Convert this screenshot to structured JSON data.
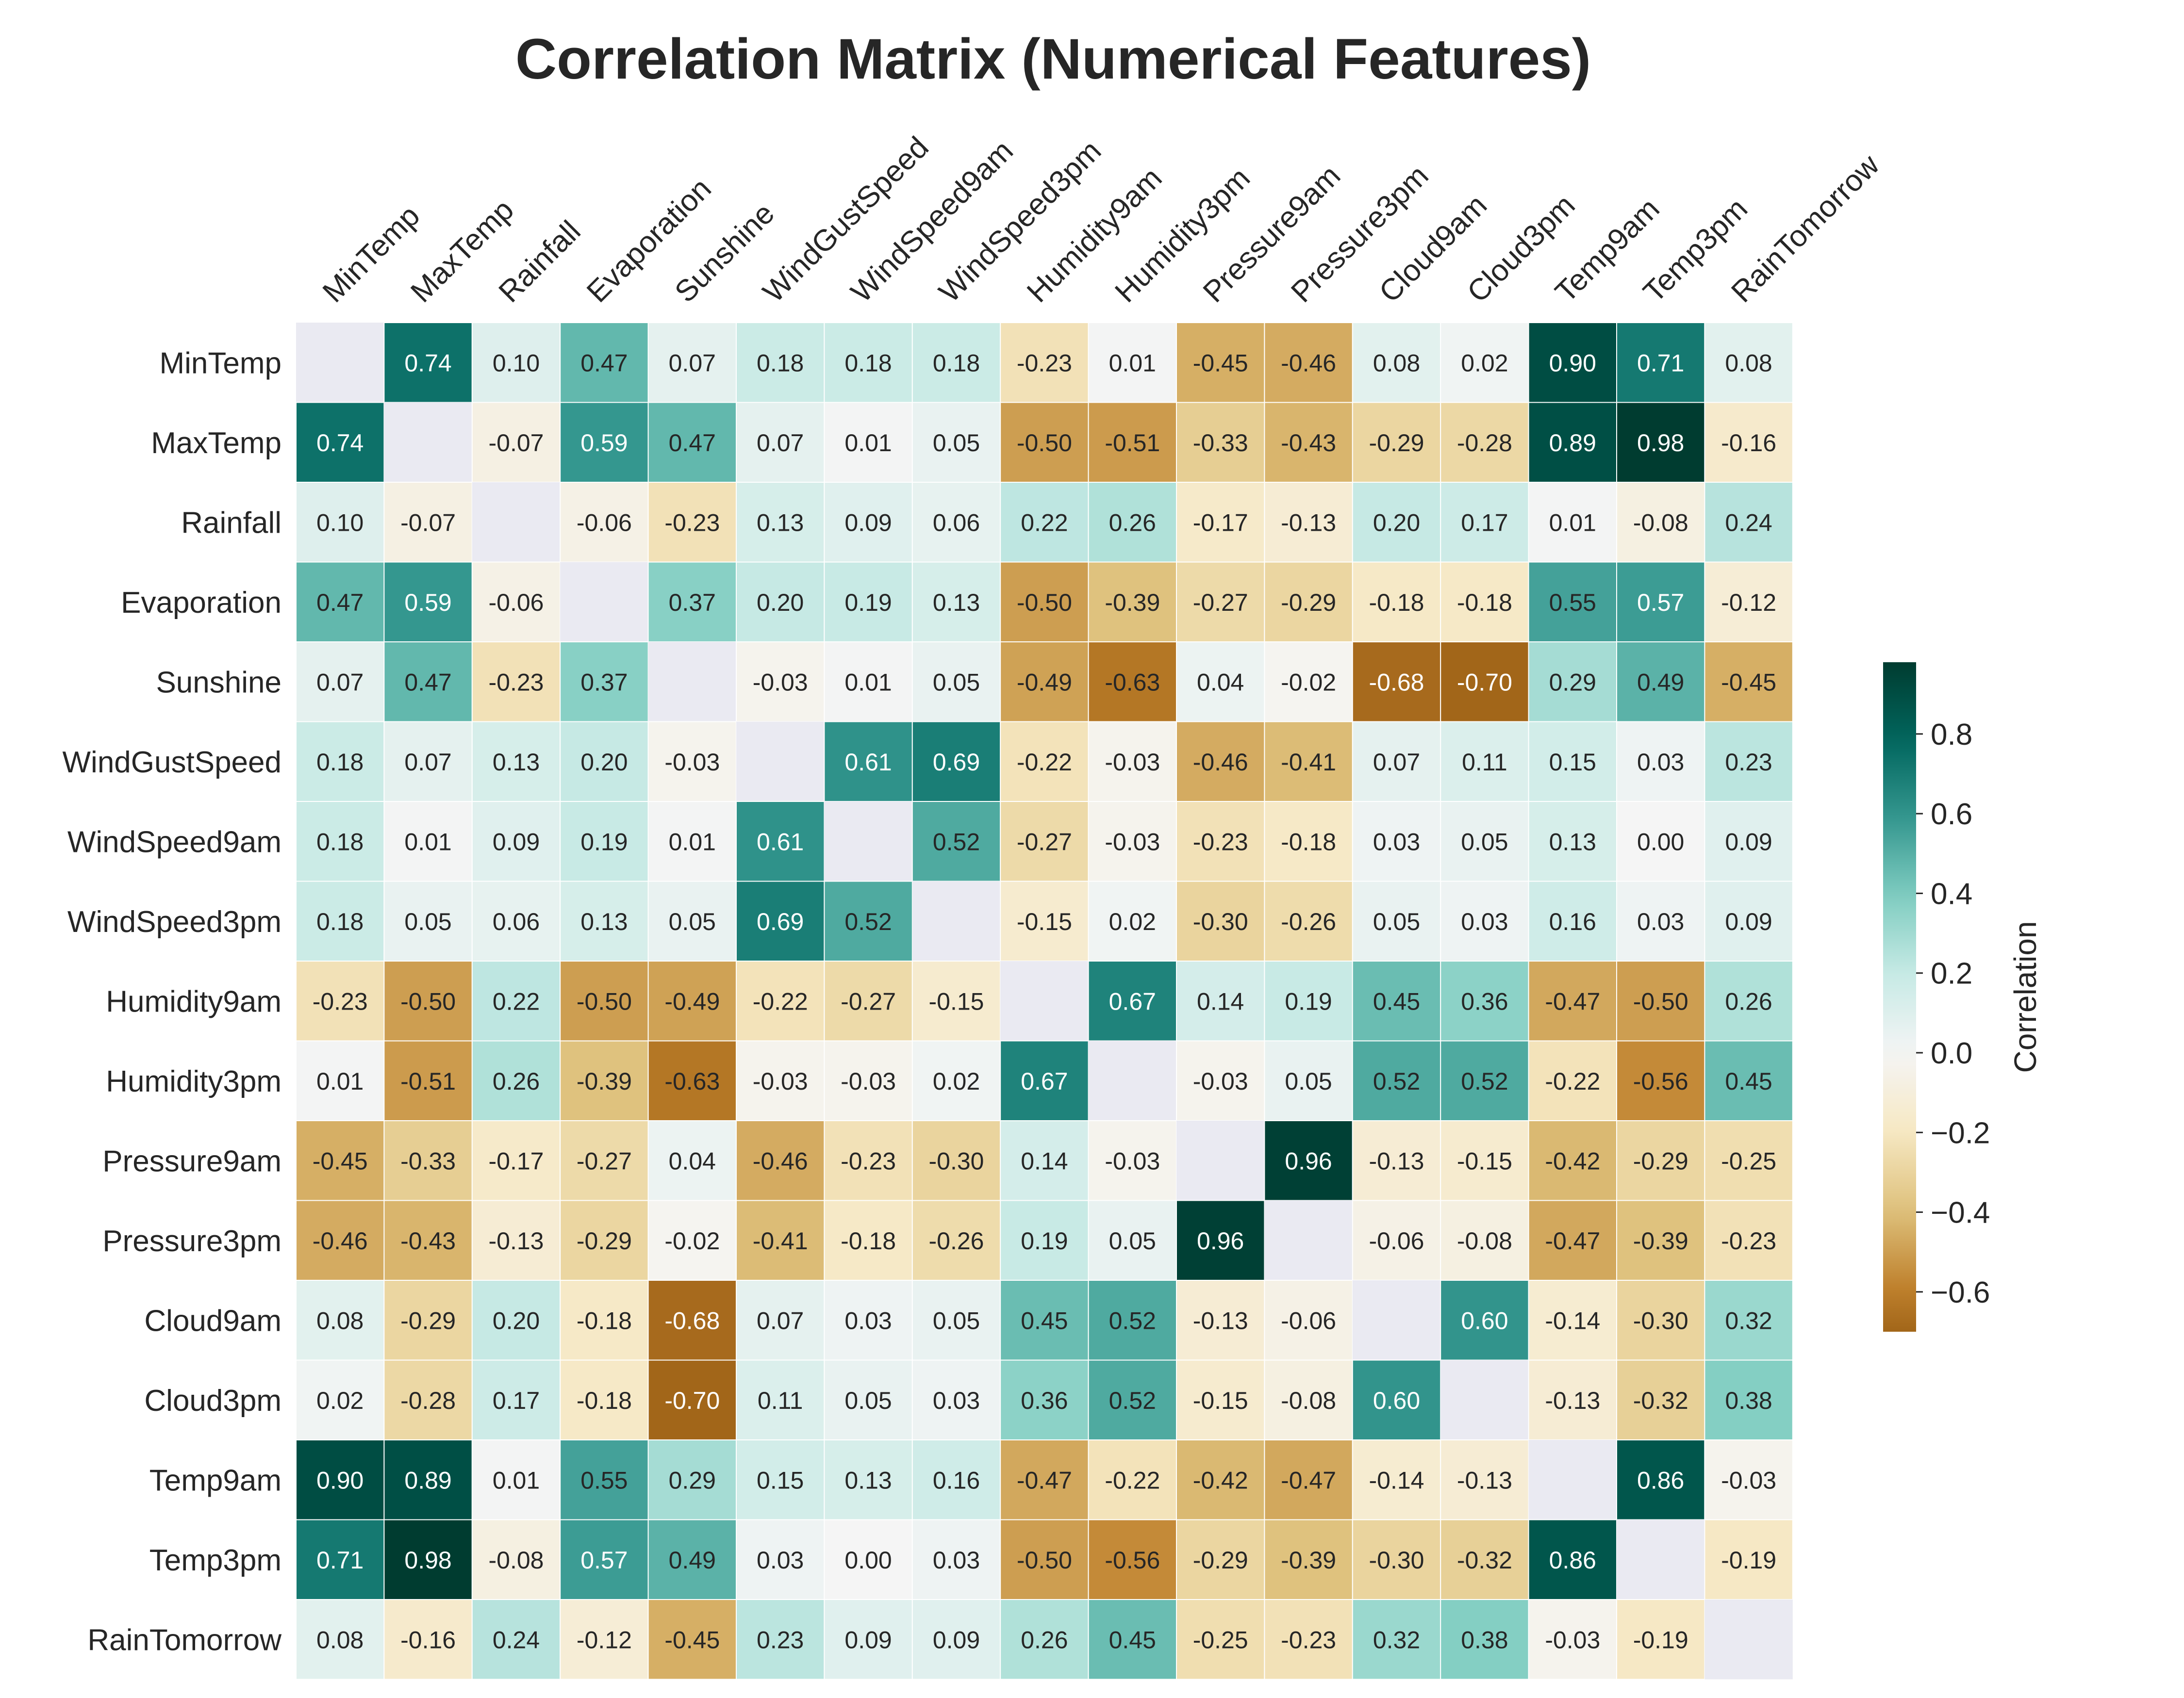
{
  "chart_data": {
    "type": "heatmap",
    "title": "Correlation Matrix (Numerical Features)",
    "labels": [
      "MinTemp",
      "MaxTemp",
      "Rainfall",
      "Evaporation",
      "Sunshine",
      "WindGustSpeed",
      "WindSpeed9am",
      "WindSpeed3pm",
      "Humidity9am",
      "Humidity3pm",
      "Pressure9am",
      "Pressure3pm",
      "Cloud9am",
      "Cloud3pm",
      "Temp9am",
      "Temp3pm",
      "RainTomorrow"
    ],
    "values": [
      [
        null,
        0.74,
        0.1,
        0.47,
        0.07,
        0.18,
        0.18,
        0.18,
        -0.23,
        0.01,
        -0.45,
        -0.46,
        0.08,
        0.02,
        0.9,
        0.71,
        0.08
      ],
      [
        0.74,
        null,
        -0.07,
        0.59,
        0.47,
        0.07,
        0.01,
        0.05,
        -0.5,
        -0.51,
        -0.33,
        -0.43,
        -0.29,
        -0.28,
        0.89,
        0.98,
        -0.16
      ],
      [
        0.1,
        -0.07,
        null,
        -0.06,
        -0.23,
        0.13,
        0.09,
        0.06,
        0.22,
        0.26,
        -0.17,
        -0.13,
        0.2,
        0.17,
        0.01,
        -0.08,
        0.24
      ],
      [
        0.47,
        0.59,
        -0.06,
        null,
        0.37,
        0.2,
        0.19,
        0.13,
        -0.5,
        -0.39,
        -0.27,
        -0.29,
        -0.18,
        -0.18,
        0.55,
        0.57,
        -0.12
      ],
      [
        0.07,
        0.47,
        -0.23,
        0.37,
        null,
        -0.03,
        0.01,
        0.05,
        -0.49,
        -0.63,
        0.04,
        -0.02,
        -0.68,
        -0.7,
        0.29,
        0.49,
        -0.45
      ],
      [
        0.18,
        0.07,
        0.13,
        0.2,
        -0.03,
        null,
        0.61,
        0.69,
        -0.22,
        -0.03,
        -0.46,
        -0.41,
        0.07,
        0.11,
        0.15,
        0.03,
        0.23
      ],
      [
        0.18,
        0.01,
        0.09,
        0.19,
        0.01,
        0.61,
        null,
        0.52,
        -0.27,
        -0.03,
        -0.23,
        -0.18,
        0.03,
        0.05,
        0.13,
        0.0,
        0.09
      ],
      [
        0.18,
        0.05,
        0.06,
        0.13,
        0.05,
        0.69,
        0.52,
        null,
        -0.15,
        0.02,
        -0.3,
        -0.26,
        0.05,
        0.03,
        0.16,
        0.03,
        0.09
      ],
      [
        -0.23,
        -0.5,
        0.22,
        -0.5,
        -0.49,
        -0.22,
        -0.27,
        -0.15,
        null,
        0.67,
        0.14,
        0.19,
        0.45,
        0.36,
        -0.47,
        -0.5,
        0.26
      ],
      [
        0.01,
        -0.51,
        0.26,
        -0.39,
        -0.63,
        -0.03,
        -0.03,
        0.02,
        0.67,
        null,
        -0.03,
        0.05,
        0.52,
        0.52,
        -0.22,
        -0.56,
        0.45
      ],
      [
        -0.45,
        -0.33,
        -0.17,
        -0.27,
        0.04,
        -0.46,
        -0.23,
        -0.3,
        0.14,
        -0.03,
        null,
        0.96,
        -0.13,
        -0.15,
        -0.42,
        -0.29,
        -0.25
      ],
      [
        -0.46,
        -0.43,
        -0.13,
        -0.29,
        -0.02,
        -0.41,
        -0.18,
        -0.26,
        0.19,
        0.05,
        0.96,
        null,
        -0.06,
        -0.08,
        -0.47,
        -0.39,
        -0.23
      ],
      [
        0.08,
        -0.29,
        0.2,
        -0.18,
        -0.68,
        0.07,
        0.03,
        0.05,
        0.45,
        0.52,
        -0.13,
        -0.06,
        null,
        0.6,
        -0.14,
        -0.3,
        0.32
      ],
      [
        0.02,
        -0.28,
        0.17,
        -0.18,
        -0.7,
        0.11,
        0.05,
        0.03,
        0.36,
        0.52,
        -0.15,
        -0.08,
        0.6,
        null,
        -0.13,
        -0.32,
        0.38
      ],
      [
        0.9,
        0.89,
        0.01,
        0.55,
        0.29,
        0.15,
        0.13,
        0.16,
        -0.47,
        -0.22,
        -0.42,
        -0.47,
        -0.14,
        -0.13,
        null,
        0.86,
        -0.03
      ],
      [
        0.71,
        0.98,
        -0.08,
        0.57,
        0.49,
        0.03,
        0.0,
        0.03,
        -0.5,
        -0.56,
        -0.29,
        -0.39,
        -0.3,
        -0.32,
        0.86,
        null,
        -0.19
      ],
      [
        0.08,
        -0.16,
        0.24,
        -0.12,
        -0.45,
        0.23,
        0.09,
        0.09,
        0.26,
        0.45,
        -0.25,
        -0.23,
        0.32,
        0.38,
        -0.03,
        -0.19,
        null
      ]
    ],
    "value_format": "0.00",
    "diagonal": "masked",
    "colormap": "BrBG",
    "vmin": -0.7,
    "vmax": 0.98,
    "center": 0,
    "colorbar": {
      "label": "Correlation",
      "ticks": [
        0.8,
        0.6,
        0.4,
        0.2,
        0.0,
        -0.2,
        -0.4,
        -0.6
      ],
      "tick_labels": [
        "0.8",
        "0.6",
        "0.4",
        "0.2",
        "0.0",
        "−0.2",
        "−0.4",
        "−0.6"
      ],
      "placement": "right"
    },
    "x_tick_position": "top",
    "x_tick_rotation": 45,
    "colors": {
      "masked_cell": "#eaeaf2",
      "cell_border": "#ffffff",
      "text": "#262626"
    }
  }
}
